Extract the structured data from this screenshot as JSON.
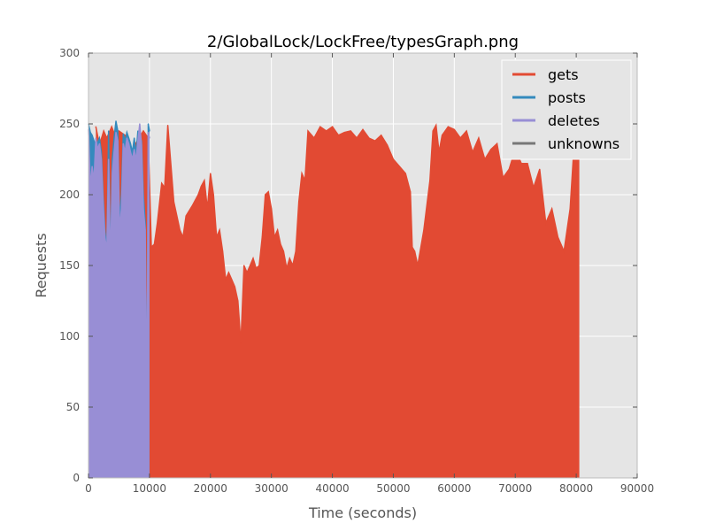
{
  "chart_data": {
    "type": "area",
    "title": "2/GlobalLock/LockFree/typesGraph.png",
    "xlabel": "Time (seconds)",
    "ylabel": "Requests",
    "xlim": [
      0,
      90000
    ],
    "ylim": [
      0,
      300
    ],
    "xticks": [
      "0",
      "10000",
      "20000",
      "30000",
      "40000",
      "50000",
      "60000",
      "70000",
      "80000",
      "90000"
    ],
    "yticks": [
      "0",
      "50",
      "100",
      "150",
      "200",
      "250",
      "300"
    ],
    "grid": true,
    "legend_position": "top-right",
    "background": "#e5e5e5",
    "series": [
      {
        "name": "gets",
        "color": "#e24a33",
        "x": [
          1200,
          1800,
          2500,
          3000,
          3800,
          4500,
          5000,
          6000,
          7000,
          8000,
          9000,
          9800,
          10300,
          10800,
          11300,
          12000,
          12500,
          13000,
          14000,
          15000,
          15500,
          16000,
          17000,
          18000,
          18500,
          19000,
          19500,
          20000,
          20500,
          21000,
          21500,
          22000,
          22500,
          23000,
          23500,
          24000,
          24500,
          25000,
          25500,
          26000,
          26500,
          27000,
          27500,
          28000,
          28500,
          29000,
          29500,
          30000,
          30500,
          31000,
          31500,
          32000,
          32500,
          33000,
          33500,
          34000,
          34500,
          35000,
          35500,
          36000,
          37000,
          38000,
          39000,
          40000,
          41000,
          42000,
          43000,
          44000,
          45000,
          46000,
          47000,
          48000,
          49000,
          50000,
          51000,
          52000,
          52800,
          53100,
          53500,
          54000,
          55000,
          56000,
          56500,
          57000,
          57500,
          58000,
          58500,
          59000,
          60000,
          61000,
          62000,
          63000,
          64000,
          65000,
          66000,
          67000,
          68000,
          69000,
          70000,
          71000,
          72000,
          73000,
          74000,
          75000,
          76000,
          77000,
          78000,
          79000,
          79500,
          80000,
          80500
        ],
        "values": [
          248,
          235,
          245,
          240,
          248,
          240,
          245,
          242,
          230,
          238,
          245,
          240,
          163,
          165,
          180,
          208,
          205,
          249,
          195,
          175,
          170,
          185,
          192,
          200,
          206,
          210,
          190,
          215,
          200,
          170,
          175,
          160,
          140,
          145,
          140,
          135,
          125,
          95,
          150,
          145,
          150,
          155,
          148,
          150,
          170,
          200,
          202,
          190,
          170,
          175,
          165,
          160,
          148,
          155,
          150,
          160,
          195,
          215,
          210,
          245,
          240,
          248,
          245,
          248,
          242,
          244,
          245,
          240,
          246,
          240,
          238,
          242,
          235,
          225,
          220,
          215,
          202,
          163,
          160,
          150,
          175,
          210,
          245,
          249,
          230,
          242,
          245,
          248,
          246,
          240,
          245,
          230,
          240,
          225,
          232,
          236,
          212,
          218,
          232,
          222,
          222,
          205,
          218,
          180,
          190,
          170,
          160,
          190,
          225,
          248,
          247
        ]
      },
      {
        "name": "posts",
        "color": "#348abd",
        "x": [
          0,
          300,
          600,
          900,
          1200,
          1500,
          1800,
          2100,
          2400,
          2700,
          3000,
          3300,
          3600,
          3900,
          4200,
          4500,
          4800,
          5100,
          5400,
          5700,
          6000,
          6300,
          6600,
          6900,
          7200,
          7500,
          7800,
          8100,
          8400,
          8700,
          9000,
          9300,
          9600,
          9800,
          10000
        ],
        "values": [
          250,
          244,
          242,
          238,
          235,
          237,
          240,
          230,
          200,
          175,
          160,
          245,
          148,
          225,
          240,
          252,
          245,
          180,
          200,
          243,
          238,
          244,
          240,
          236,
          230,
          240,
          228,
          245,
          240,
          238,
          200,
          180,
          40,
          250,
          245
        ]
      },
      {
        "name": "deletes",
        "color": "#988ed5",
        "x": [
          0,
          300,
          600,
          900,
          1200,
          1500,
          1800,
          2100,
          2400,
          2700,
          3000,
          3300,
          3600,
          3900,
          4200,
          4500,
          4800,
          5100,
          5400,
          5700,
          6000,
          6300,
          6600,
          6900,
          7200,
          7500,
          7800,
          8100,
          8400,
          8700,
          9000,
          9300,
          9600,
          9800,
          10000
        ],
        "values": [
          246,
          205,
          220,
          210,
          240,
          232,
          236,
          225,
          195,
          170,
          160,
          225,
          150,
          215,
          230,
          244,
          238,
          175,
          190,
          236,
          230,
          240,
          236,
          230,
          225,
          232,
          224,
          238,
          250,
          235,
          190,
          175,
          45,
          244,
          240
        ]
      },
      {
        "name": "unknowns",
        "color": "#777777",
        "x": [],
        "values": []
      }
    ]
  }
}
